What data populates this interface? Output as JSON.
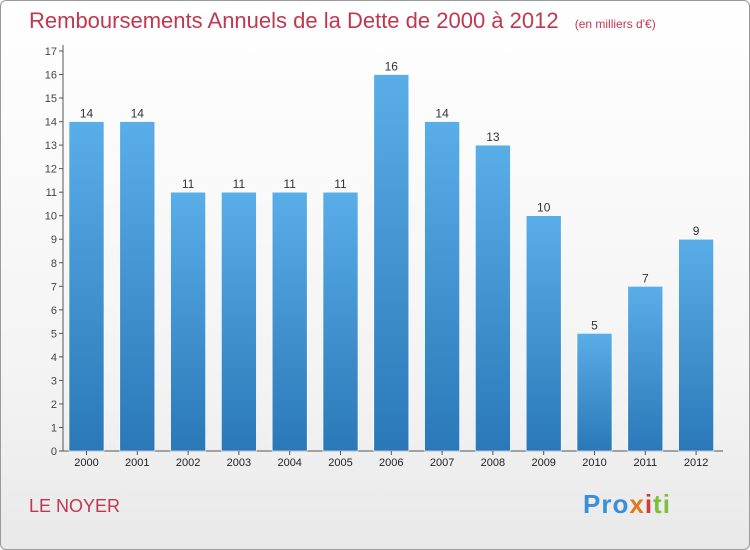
{
  "header": {
    "title": "Remboursements Annuels de la Dette de 2000 à 2012",
    "unit": "(en milliers d'€)"
  },
  "footer": {
    "place": "LE NOYER",
    "logo": [
      "Pro",
      "x",
      "i",
      "ti"
    ]
  },
  "colors": {
    "title": "#c0384f",
    "bar_top": "#5aaee8",
    "bar_bottom": "#2a78b8"
  },
  "chart_data": {
    "type": "bar",
    "categories": [
      "2000",
      "2001",
      "2002",
      "2003",
      "2004",
      "2005",
      "2006",
      "2007",
      "2008",
      "2009",
      "2010",
      "2011",
      "2012"
    ],
    "values": [
      14,
      14,
      11,
      11,
      11,
      11,
      16,
      14,
      13,
      10,
      5,
      7,
      9
    ],
    "title": "Remboursements Annuels de la Dette de 2000 à 2012",
    "ylim": [
      0,
      17
    ],
    "yticks": [
      0,
      1,
      2,
      3,
      4,
      5,
      6,
      7,
      8,
      9,
      10,
      11,
      12,
      13,
      14,
      15,
      16,
      17
    ],
    "grid": false,
    "data_labels": true
  }
}
